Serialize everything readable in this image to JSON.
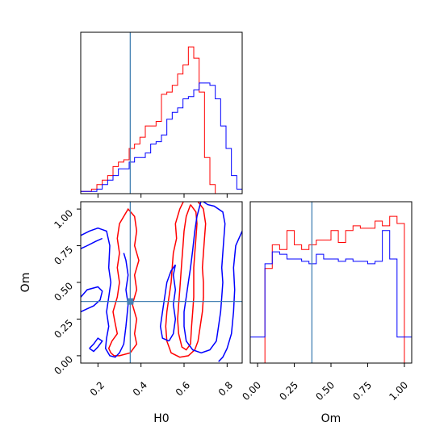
{
  "chart_data": {
    "type": "corner",
    "parameters": [
      "H0",
      "Om"
    ],
    "truth": {
      "H0": 0.35,
      "Om": 0.37
    },
    "truth_color": "#4682b4",
    "series": [
      {
        "color": "#ff0000"
      },
      {
        "color": "#0000ff"
      }
    ],
    "hist_H0": {
      "xlim": [
        0.12,
        0.87
      ],
      "bins": [
        0.12,
        0.145,
        0.17,
        0.195,
        0.22,
        0.245,
        0.27,
        0.295,
        0.32,
        0.345,
        0.37,
        0.395,
        0.42,
        0.445,
        0.47,
        0.495,
        0.52,
        0.545,
        0.57,
        0.595,
        0.62,
        0.645,
        0.67,
        0.695,
        0.72,
        0.745,
        0.77,
        0.795,
        0.82,
        0.845,
        0.87
      ],
      "red": [
        1,
        1,
        2,
        4,
        6,
        8,
        12,
        14,
        15,
        20,
        22,
        25,
        30,
        30,
        32,
        44,
        45,
        48,
        53,
        57,
        65,
        60,
        45,
        16,
        4,
        0,
        0,
        0,
        0,
        0
      ],
      "blue": [
        1,
        1,
        1,
        2,
        4,
        6,
        8,
        11,
        11,
        14,
        16,
        16,
        18,
        22,
        23,
        26,
        33,
        36,
        38,
        42,
        43,
        46,
        49,
        49,
        48,
        42,
        30,
        20,
        8,
        2
      ]
    },
    "hist_Om": {
      "xlim": [
        -0.05,
        1.05
      ],
      "bins": [
        -0.05,
        0.0,
        0.05,
        0.1,
        0.15,
        0.2,
        0.25,
        0.3,
        0.35,
        0.4,
        0.45,
        0.5,
        0.55,
        0.6,
        0.65,
        0.7,
        0.75,
        0.8,
        0.85,
        0.9,
        0.95,
        1.0,
        1.05
      ],
      "red": [
        0,
        0,
        40,
        50,
        48,
        56,
        50,
        48,
        50,
        52,
        52,
        56,
        51,
        56,
        58,
        57,
        57,
        60,
        58,
        62,
        59,
        0
      ],
      "blue": [
        11,
        11,
        42,
        47,
        46,
        44,
        44,
        43,
        42,
        46,
        44,
        44,
        43,
        44,
        43,
        43,
        42,
        43,
        56,
        44,
        11,
        11
      ]
    },
    "contours": {
      "xlim": [
        0.12,
        0.87
      ],
      "ylim": [
        -0.05,
        1.05
      ],
      "red": [
        [
          [
            0.275,
            0.0
          ],
          [
            0.26,
            0.02
          ],
          [
            0.25,
            0.05
          ],
          [
            0.265,
            0.1
          ],
          [
            0.29,
            0.15
          ],
          [
            0.28,
            0.22
          ],
          [
            0.27,
            0.3
          ],
          [
            0.29,
            0.4
          ],
          [
            0.3,
            0.5
          ],
          [
            0.29,
            0.6
          ],
          [
            0.3,
            0.7
          ],
          [
            0.29,
            0.8
          ],
          [
            0.3,
            0.9
          ],
          [
            0.32,
            0.95
          ],
          [
            0.34,
            1.0
          ],
          [
            0.37,
            0.95
          ],
          [
            0.38,
            0.85
          ],
          [
            0.37,
            0.75
          ],
          [
            0.39,
            0.65
          ],
          [
            0.37,
            0.55
          ],
          [
            0.38,
            0.45
          ],
          [
            0.36,
            0.35
          ],
          [
            0.38,
            0.25
          ],
          [
            0.37,
            0.15
          ],
          [
            0.38,
            0.08
          ],
          [
            0.35,
            0.02
          ],
          [
            0.3,
            0.0
          ],
          [
            0.275,
            0.0
          ]
        ],
        [
          [
            0.6,
            1.06
          ],
          [
            0.58,
            1.0
          ],
          [
            0.56,
            0.9
          ],
          [
            0.565,
            0.8
          ],
          [
            0.55,
            0.7
          ],
          [
            0.545,
            0.6
          ],
          [
            0.54,
            0.5
          ],
          [
            0.53,
            0.4
          ],
          [
            0.52,
            0.3
          ],
          [
            0.515,
            0.2
          ],
          [
            0.52,
            0.1
          ],
          [
            0.54,
            0.02
          ],
          [
            0.58,
            -0.01
          ],
          [
            0.62,
            0.0
          ],
          [
            0.65,
            0.04
          ],
          [
            0.665,
            0.1
          ],
          [
            0.675,
            0.2
          ],
          [
            0.685,
            0.3
          ],
          [
            0.69,
            0.4
          ],
          [
            0.69,
            0.5
          ],
          [
            0.685,
            0.6
          ],
          [
            0.69,
            0.7
          ],
          [
            0.695,
            0.8
          ],
          [
            0.7,
            0.9
          ],
          [
            0.69,
            1.0
          ],
          [
            0.66,
            1.06
          ],
          [
            0.6,
            1.06
          ]
        ],
        [
          [
            0.63,
            1.03
          ],
          [
            0.61,
            0.95
          ],
          [
            0.6,
            0.85
          ],
          [
            0.595,
            0.75
          ],
          [
            0.59,
            0.65
          ],
          [
            0.585,
            0.55
          ],
          [
            0.58,
            0.45
          ],
          [
            0.575,
            0.35
          ],
          [
            0.57,
            0.25
          ],
          [
            0.575,
            0.15
          ],
          [
            0.59,
            0.06
          ],
          [
            0.61,
            0.04
          ],
          [
            0.63,
            0.08
          ],
          [
            0.635,
            0.2
          ],
          [
            0.64,
            0.3
          ],
          [
            0.645,
            0.4
          ],
          [
            0.645,
            0.5
          ],
          [
            0.645,
            0.6
          ],
          [
            0.65,
            0.7
          ],
          [
            0.655,
            0.8
          ],
          [
            0.66,
            0.9
          ],
          [
            0.655,
            0.98
          ],
          [
            0.63,
            1.03
          ]
        ]
      ],
      "blue": [
        [
          [
            0.12,
            0.82
          ],
          [
            0.16,
            0.85
          ],
          [
            0.2,
            0.87
          ],
          [
            0.24,
            0.85
          ],
          [
            0.255,
            0.75
          ],
          [
            0.25,
            0.6
          ],
          [
            0.26,
            0.5
          ],
          [
            0.25,
            0.4
          ],
          [
            0.24,
            0.3
          ],
          [
            0.25,
            0.2
          ],
          [
            0.24,
            0.12
          ],
          [
            0.235,
            0.05
          ],
          [
            0.255,
            0.0
          ],
          [
            0.28,
            -0.01
          ],
          [
            0.3,
            0.02
          ],
          [
            0.32,
            0.08
          ],
          [
            0.33,
            0.2
          ],
          [
            0.34,
            0.35
          ],
          [
            0.33,
            0.45
          ],
          [
            0.34,
            0.55
          ],
          [
            0.33,
            0.65
          ],
          [
            0.32,
            0.7
          ]
        ],
        [
          [
            0.12,
            0.73
          ],
          [
            0.15,
            0.75
          ],
          [
            0.19,
            0.78
          ],
          [
            0.22,
            0.8
          ]
        ],
        [
          [
            0.12,
            0.4
          ],
          [
            0.15,
            0.45
          ],
          [
            0.2,
            0.47
          ],
          [
            0.22,
            0.44
          ],
          [
            0.21,
            0.38
          ],
          [
            0.18,
            0.34
          ],
          [
            0.15,
            0.32
          ],
          [
            0.12,
            0.3
          ]
        ],
        [
          [
            0.16,
            0.05
          ],
          [
            0.18,
            0.08
          ],
          [
            0.2,
            0.12
          ],
          [
            0.22,
            0.1
          ],
          [
            0.2,
            0.06
          ],
          [
            0.18,
            0.03
          ],
          [
            0.16,
            0.05
          ]
        ],
        [
          [
            0.68,
            1.06
          ],
          [
            0.66,
            0.95
          ],
          [
            0.65,
            0.85
          ],
          [
            0.64,
            0.72
          ],
          [
            0.63,
            0.6
          ],
          [
            0.62,
            0.5
          ],
          [
            0.61,
            0.4
          ],
          [
            0.6,
            0.3
          ],
          [
            0.6,
            0.2
          ],
          [
            0.61,
            0.1
          ],
          [
            0.64,
            0.04
          ],
          [
            0.68,
            0.02
          ],
          [
            0.72,
            0.04
          ],
          [
            0.75,
            0.1
          ],
          [
            0.76,
            0.2
          ],
          [
            0.77,
            0.3
          ],
          [
            0.775,
            0.4
          ],
          [
            0.78,
            0.5
          ],
          [
            0.775,
            0.6
          ],
          [
            0.78,
            0.7
          ],
          [
            0.785,
            0.8
          ],
          [
            0.79,
            0.9
          ],
          [
            0.78,
            0.98
          ],
          [
            0.74,
            1.02
          ],
          [
            0.71,
            1.03
          ],
          [
            0.68,
            1.06
          ]
        ],
        [
          [
            0.87,
            0.85
          ],
          [
            0.84,
            0.75
          ],
          [
            0.83,
            0.6
          ],
          [
            0.835,
            0.45
          ],
          [
            0.83,
            0.3
          ],
          [
            0.82,
            0.15
          ],
          [
            0.8,
            0.05
          ],
          [
            0.78,
            -0.01
          ],
          [
            0.76,
            -0.04
          ]
        ],
        [
          [
            0.53,
            0.1
          ],
          [
            0.55,
            0.15
          ],
          [
            0.56,
            0.25
          ],
          [
            0.55,
            0.35
          ],
          [
            0.56,
            0.45
          ],
          [
            0.55,
            0.55
          ],
          [
            0.56,
            0.62
          ],
          [
            0.54,
            0.58
          ],
          [
            0.52,
            0.5
          ],
          [
            0.51,
            0.4
          ],
          [
            0.5,
            0.3
          ],
          [
            0.49,
            0.2
          ],
          [
            0.5,
            0.12
          ],
          [
            0.53,
            0.1
          ]
        ]
      ]
    }
  },
  "labels": {
    "x_H0": "H0",
    "x_Om": "Om",
    "y_Om": "Om"
  },
  "ticks": {
    "H0": [
      "0.2",
      "0.4",
      "0.6",
      "0.8"
    ],
    "Om_left": [
      "0.00",
      "0.25",
      "0.50",
      "0.75",
      "1.00"
    ],
    "Om_bottom": [
      "0.00",
      "0.25",
      "0.50",
      "0.75",
      "1.00"
    ]
  }
}
